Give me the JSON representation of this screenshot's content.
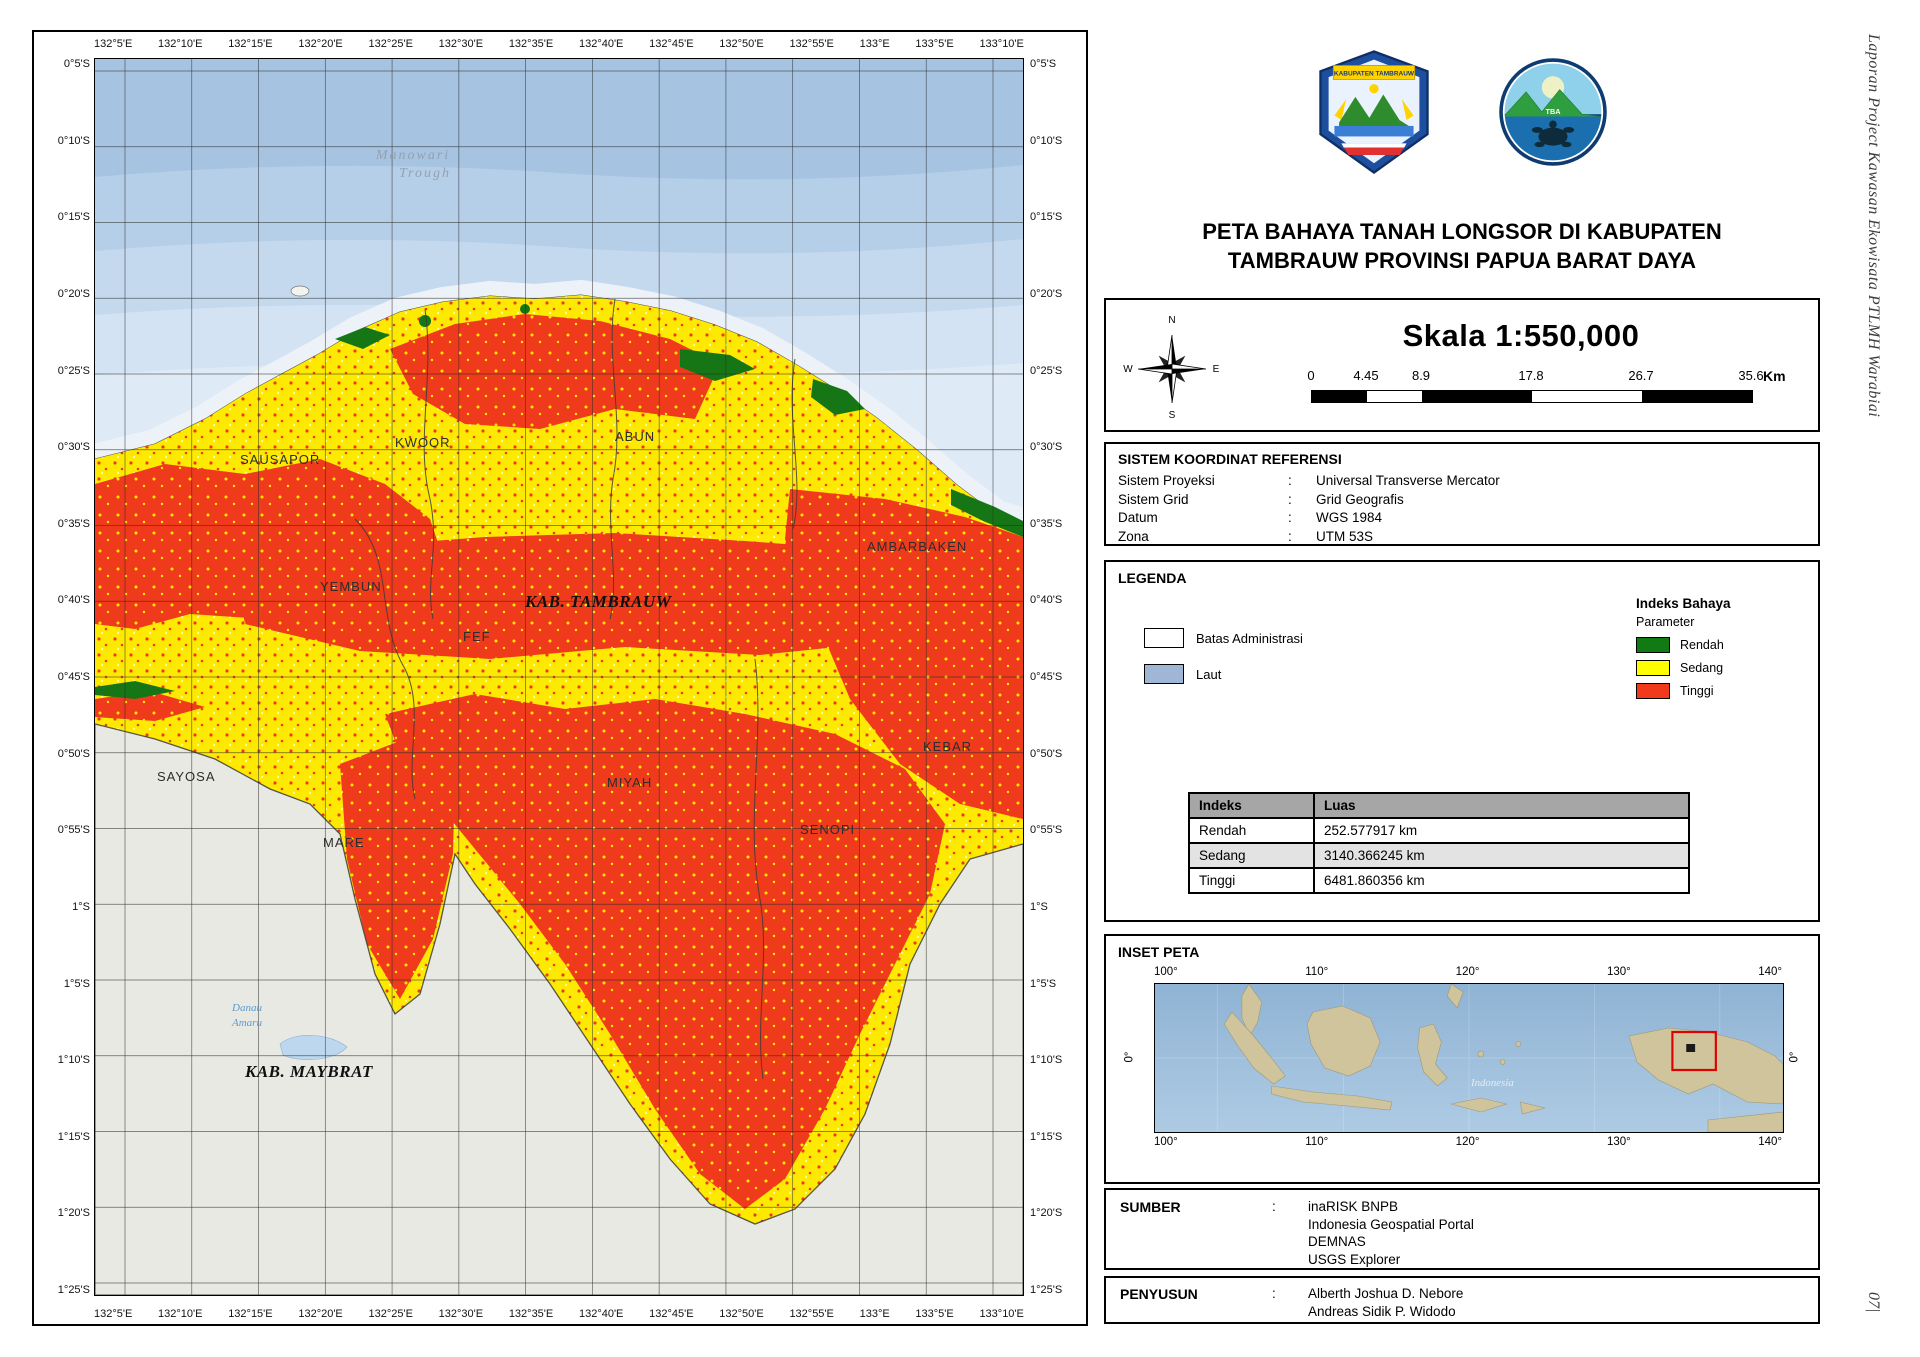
{
  "edge": {
    "caption": "Laporan Project Kawasan Ekowisata PTLMH Warabiai",
    "page_number": "07|"
  },
  "map": {
    "lon_labels": [
      "132°5'E",
      "132°10'E",
      "132°15'E",
      "132°20'E",
      "132°25'E",
      "132°30'E",
      "132°35'E",
      "132°40'E",
      "132°45'E",
      "132°50'E",
      "132°55'E",
      "133°E",
      "133°5'E",
      "133°10'E"
    ],
    "lat_labels": [
      "0°5'S",
      "0°10'S",
      "0°15'S",
      "0°20'S",
      "0°25'S",
      "0°30'S",
      "0°35'S",
      "0°40'S",
      "0°45'S",
      "0°50'S",
      "0°55'S",
      "1°S",
      "1°5'S",
      "1°10'S",
      "1°15'S",
      "1°20'S",
      "1°25'S"
    ],
    "sea_label_line1": "Manowari",
    "sea_label_line2": "Trough",
    "regions": {
      "sausapor": "SAUSAPOR",
      "kwoor": "KWOOR",
      "abun": "ABUN",
      "ambarbaken": "AMBARBAKEN",
      "yembun": "YEMBUN",
      "kab_tambrauw": "KAB. TAMBRAUW",
      "fef": "FEF",
      "kebar": "KEBAR",
      "sayosa": "SAYOSA",
      "miyah": "MIYAH",
      "mare": "MARE",
      "senopi": "SENOPI",
      "kab_maybrat": "KAB. MAYBRAT"
    },
    "lake_label_line1": "Danau",
    "lake_label_line2": "Amaru"
  },
  "header": {
    "title_line1": "PETA BAHAYA TANAH LONGSOR DI KABUPATEN",
    "title_line2": "TAMBRAUW PROVINSI PAPUA BARAT DAYA",
    "crest_banner": "KABUPATEN TAMBRAUW",
    "circle_text": "TBA"
  },
  "scale": {
    "label": "Skala 1:550,000",
    "ticks": [
      "0",
      "4.45",
      "8.9",
      "17.8",
      "26.7",
      "35.6"
    ],
    "unit": "Km",
    "compass": {
      "n": "N",
      "e": "E",
      "s": "S",
      "w": "W"
    }
  },
  "crs": {
    "title": "SISTEM KOORDINAT REFERENSI",
    "rows": [
      {
        "label": "Sistem Proyeksi",
        "sep": ":",
        "value": "Universal Transverse Mercator"
      },
      {
        "label": "Sistem Grid",
        "sep": ":",
        "value": "Grid Geografis"
      },
      {
        "label": "Datum",
        "sep": ":",
        "value": "WGS 1984"
      },
      {
        "label": "Zona",
        "sep": ":",
        "value": "UTM 53S"
      }
    ]
  },
  "legend": {
    "title": "LEGENDA",
    "items": [
      {
        "label": "Batas Administrasi",
        "color": "#ffffff"
      },
      {
        "label": "Laut",
        "color": "#a0b6d6"
      }
    ],
    "hazard": {
      "title": "Indeks Bahaya",
      "subtitle": "Parameter",
      "items": [
        {
          "label": "Rendah",
          "color": "#127a12"
        },
        {
          "label": "Sedang",
          "color": "#ffff00"
        },
        {
          "label": "Tinggi",
          "color": "#f13a1c"
        }
      ]
    },
    "table": {
      "col1": "Indeks",
      "col2": "Luas",
      "rows": [
        {
          "indeks": "Rendah",
          "luas": "252.577917 km"
        },
        {
          "indeks": "Sedang",
          "luas": "3140.366245 km"
        },
        {
          "indeks": "Tinggi",
          "luas": "6481.860356 km"
        }
      ]
    }
  },
  "inset": {
    "title": "INSET PETA",
    "x_labels": [
      "100°",
      "110°",
      "120°",
      "130°",
      "140°"
    ],
    "y_label_left": "0°",
    "y_label_right": "0°",
    "country": "Indonesia"
  },
  "sumber": {
    "title": "SUMBER",
    "sep": ":",
    "lines": [
      "inaRISK BNPB",
      "Indonesia Geospatial Portal",
      "DEMNAS",
      "USGS Explorer"
    ]
  },
  "penyusun": {
    "title": "PENYUSUN",
    "sep": ":",
    "lines": [
      "Alberth Joshua D. Nebore",
      "Andreas Sidik P. Widodo"
    ]
  }
}
